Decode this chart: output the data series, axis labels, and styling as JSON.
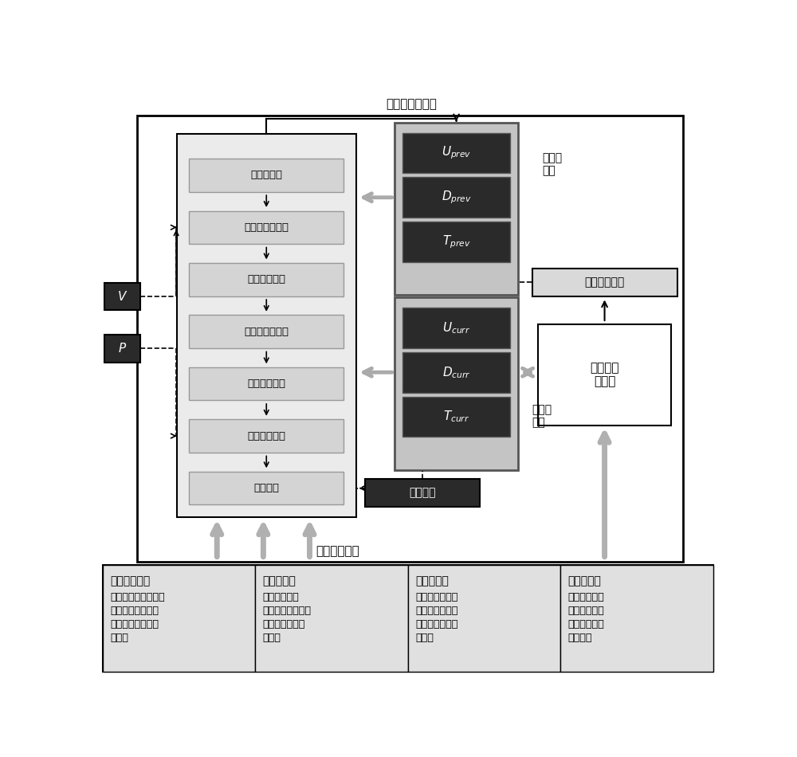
{
  "title_top": "继续计算下一帧",
  "title_bottom": "进入图形通道",
  "pipeline_boxes": [
    "初始化通道",
    "速度场对流通道",
    "外力计算通道",
    "粘滞力计算通道",
    "压强修正通道",
    "标量对流通道",
    "亮度通道"
  ],
  "prev_boxes": [
    "$U_{prev}$",
    "$D_{prev}$",
    "$T_{prev}$"
  ],
  "curr_boxes": [
    "$U_{curr}$",
    "$D_{curr}$",
    "$T_{curr}$"
  ],
  "prev_label": "上一帧\n数据",
  "curr_label": "当前帧\n数据",
  "liang_box": "亮度网格",
  "swap_box": "交换资源绑定",
  "smoke_box": "烟雾体绘\n制通道",
  "V_label": "$V$",
  "P_label": "$P$",
  "bottom_cells": [
    {
      "title": "发生器参数：",
      "body": "发生器位置，大小，\n占据区域的各个标\n量场和矢量场初始\n化值。"
    },
    {
      "title": "网格参数：",
      "body": "采用的网格类\n型，网格分辨率，\n网格占据区域的\n大小。"
    },
    {
      "title": "浮力参数：",
      "body": "温度系数，密度\n系数，浮力衰减\n因子，密度衰减\n因子。"
    },
    {
      "title": "光学参数：",
      "body": "太阳方向，辐\n射能量。大气\n传输，路径辐\n射参数等"
    }
  ],
  "colors": {
    "pipeline_outer_bg": "#ebebeb",
    "pipeline_inner_bg": "#d4d4d4",
    "dark_box_bg": "#2a2a2a",
    "dark_box_text": "#ffffff",
    "prev_outer_bg": "#b8b8b8",
    "swap_bg": "#d9d9d9",
    "smoke_bg": "#ffffff",
    "bottom_bg": "#e0e0e0",
    "liang_bg": "#2a2a2a",
    "hollow_arrow": "#aaaaaa"
  }
}
